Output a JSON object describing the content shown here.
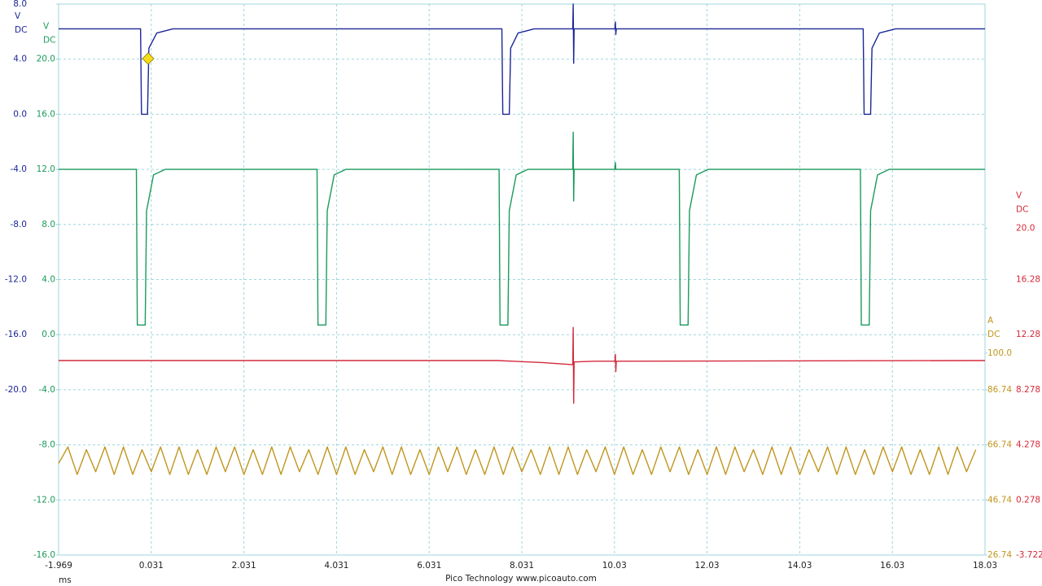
{
  "chart_data": {
    "type": "line",
    "grid": true,
    "xlim": [
      -1.969,
      18.03
    ],
    "xticks": [
      -1.969,
      0.031,
      2.031,
      4.031,
      6.031,
      8.031,
      10.03,
      12.03,
      14.03,
      16.03,
      18.03
    ],
    "xlabel": "ms",
    "footer": "Pico Technology  www.picoauto.com",
    "axes": [
      {
        "unit": "V",
        "coupling": "DC",
        "color": "#1c2796",
        "side": "left",
        "ylim": [
          -32,
          8
        ],
        "yticks": [
          {
            "value": 8,
            "label": "8.0"
          },
          {
            "value": 4,
            "label": "4.0"
          },
          {
            "value": 0,
            "label": "0.0"
          },
          {
            "value": -4,
            "label": "-4.0"
          },
          {
            "value": -8,
            "label": "-8.0"
          },
          {
            "value": -12,
            "label": "-12.0"
          },
          {
            "value": -16,
            "label": "-16.0"
          },
          {
            "value": -20,
            "label": "-20.0"
          }
        ]
      },
      {
        "unit": "V",
        "coupling": "DC",
        "color": "#1b9a5c",
        "side": "left",
        "ylim": [
          -16,
          24
        ],
        "yticks": [
          {
            "value": 20,
            "label": "20.0"
          },
          {
            "value": 16,
            "label": "16.0"
          },
          {
            "value": 12,
            "label": "12.0"
          },
          {
            "value": 8,
            "label": "8.0"
          },
          {
            "value": 4,
            "label": "4.0"
          },
          {
            "value": 0,
            "label": "0.0"
          },
          {
            "value": -4,
            "label": "-4.0"
          },
          {
            "value": -8,
            "label": "-8.0"
          },
          {
            "value": -12,
            "label": "-12.0"
          },
          {
            "value": -16,
            "label": "-16.0"
          }
        ]
      },
      {
        "unit": "A",
        "coupling": "DC",
        "color": "#c0961e",
        "side": "right",
        "ylim": [
          26.74,
          226.74
        ],
        "yticks": [
          {
            "value": 100,
            "label": "100.0"
          },
          86.74,
          66.74,
          46.74,
          26.74
        ]
      },
      {
        "unit": "V",
        "coupling": "DC",
        "color": "#d42a3a",
        "side": "right",
        "ylim": [
          -3.722,
          36.278
        ],
        "yticks": [
          {
            "value": 20,
            "label": "20.0"
          },
          16.28,
          12.28,
          8.278,
          4.278,
          0.278,
          -3.722
        ]
      }
    ],
    "series": [
      {
        "color": "#1c2796",
        "axis": 0,
        "x": [
          -1.969,
          -0.2,
          -0.18,
          -0.05,
          -0.02,
          0.15,
          0.5,
          7.6,
          7.62,
          7.76,
          7.79,
          7.95,
          8.3,
          9.13,
          9.14,
          9.15,
          9.16,
          10.04,
          10.05,
          10.06,
          10.07,
          15.4,
          15.42,
          15.56,
          15.59,
          15.75,
          16.1,
          18.03
        ],
        "values": [
          6.2,
          6.2,
          0.0,
          0.0,
          4.8,
          5.9,
          6.2,
          6.2,
          0.0,
          0.0,
          4.8,
          5.9,
          6.2,
          6.2,
          8.0,
          3.7,
          6.2,
          6.2,
          6.7,
          5.8,
          6.2,
          6.2,
          0.0,
          0.0,
          4.8,
          5.9,
          6.2,
          6.2
        ]
      },
      {
        "color": "#1b9a5c",
        "axis": 1,
        "x": [
          -1.969,
          -0.29,
          -0.27,
          -0.1,
          -0.07,
          0.08,
          0.33,
          3.61,
          3.63,
          3.8,
          3.83,
          3.98,
          4.23,
          7.54,
          7.56,
          7.73,
          7.76,
          7.91,
          8.16,
          9.13,
          9.14,
          9.15,
          9.16,
          10.04,
          10.05,
          10.06,
          11.43,
          11.45,
          11.62,
          11.65,
          11.8,
          12.05,
          15.34,
          15.36,
          15.53,
          15.56,
          15.71,
          15.96,
          18.03
        ],
        "values": [
          12,
          12,
          0.7,
          0.7,
          9,
          11.6,
          12,
          12,
          0.7,
          0.7,
          9,
          11.6,
          12,
          12,
          0.7,
          0.7,
          9,
          11.6,
          12,
          12,
          14.7,
          9.7,
          12,
          12,
          12.5,
          12,
          12,
          0.7,
          0.7,
          9,
          11.6,
          12,
          12,
          0.7,
          0.7,
          9,
          11.6,
          12,
          12
        ]
      },
      {
        "color": "#c0961e",
        "axis": 2,
        "x": [
          -1.969,
          -1.769,
          -1.569,
          -1.369,
          -1.169,
          -0.969,
          -0.769,
          -0.569,
          -0.369,
          -0.169,
          0.031,
          0.231,
          0.431,
          0.631,
          0.831,
          1.031,
          1.231,
          1.431,
          1.631,
          1.831,
          2.031,
          2.231,
          2.431,
          2.631,
          2.831,
          3.031,
          3.231,
          3.431,
          3.631,
          3.831,
          4.031,
          4.231,
          4.431,
          4.631,
          4.831,
          5.031,
          5.231,
          5.431,
          5.631,
          5.831,
          6.031,
          6.231,
          6.431,
          6.631,
          6.831,
          7.031,
          7.231,
          7.431,
          7.631,
          7.831,
          8.031,
          8.231,
          8.431,
          8.631,
          8.831,
          9.031,
          9.231,
          9.431,
          9.631,
          9.831,
          10.031,
          10.231,
          10.431,
          10.631,
          10.831,
          11.031,
          11.231,
          11.431,
          11.631,
          11.831,
          12.031,
          12.231,
          12.431,
          12.631,
          12.831,
          13.031,
          13.231,
          13.431,
          13.631,
          13.831,
          14.031,
          14.231,
          14.431,
          14.631,
          14.831,
          15.031,
          15.231,
          15.431,
          15.631,
          15.831,
          16.031,
          16.231,
          16.431,
          16.631,
          16.831,
          17.031,
          17.231,
          17.431,
          17.631,
          17.831
        ],
        "values": [
          60,
          66,
          56,
          65,
          57,
          66,
          56,
          66,
          56,
          65,
          57,
          66,
          56,
          66,
          56,
          65,
          56,
          66,
          57,
          66,
          56,
          65,
          56,
          66,
          56,
          66,
          57,
          65,
          56,
          66,
          56,
          66,
          56,
          65,
          57,
          66,
          56,
          66,
          56,
          65,
          56,
          66,
          57,
          66,
          56,
          65,
          56,
          66,
          56,
          66,
          57,
          65,
          56,
          66,
          56,
          66,
          56,
          65,
          57,
          66,
          56,
          66,
          56,
          65,
          56,
          66,
          57,
          66,
          56,
          65,
          56,
          66,
          56,
          66,
          57,
          65,
          56,
          66,
          56,
          66,
          56,
          65,
          57,
          66,
          56,
          66,
          56,
          65,
          56,
          66,
          57,
          66,
          56,
          65,
          56,
          66,
          56,
          66,
          57,
          65
        ]
      },
      {
        "color": "#d42a3a",
        "axis": 3,
        "x": [
          -1.969,
          7.5,
          8.5,
          9.13,
          9.14,
          9.15,
          9.16,
          9.6,
          10.04,
          10.05,
          10.06,
          10.07,
          18.03
        ],
        "values": [
          10.4,
          10.4,
          10.25,
          10.1,
          12.8,
          7.3,
          10.3,
          10.35,
          10.35,
          10.85,
          9.6,
          10.35,
          10.4
        ]
      }
    ]
  }
}
